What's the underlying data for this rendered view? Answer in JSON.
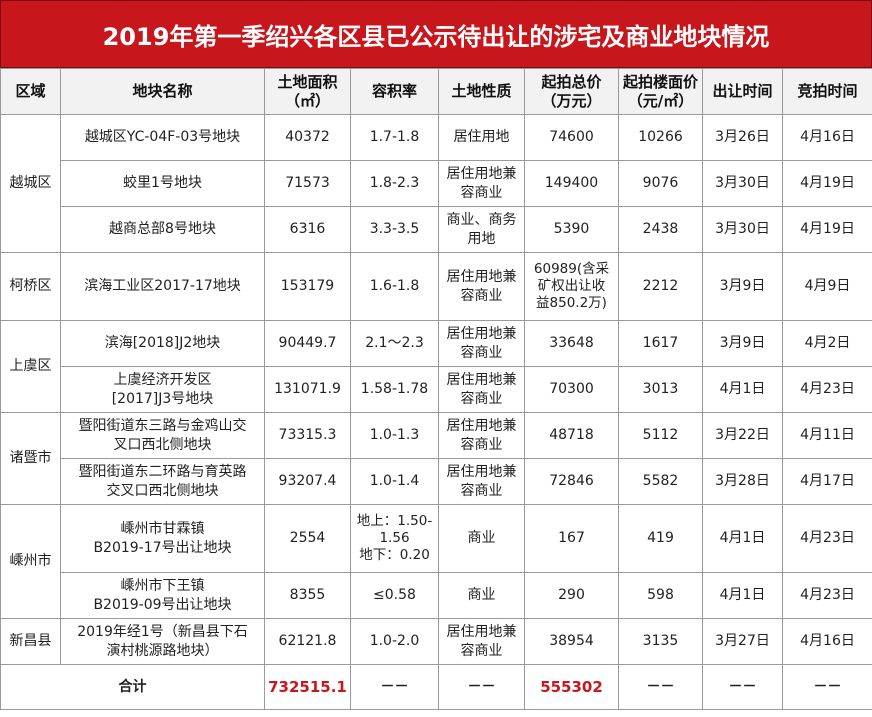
{
  "title": "2019年第一季绍兴各区县已公示待出让的涉宅及商业地块情况",
  "headers": {
    "district": "区域",
    "name": "地块名称",
    "area_1": "土地面积",
    "area_2": "（㎡）",
    "far": "容积率",
    "nature": "土地性质",
    "price_1": "起拍总价",
    "price_2": "（万元）",
    "unit_1": "起拍楼面价",
    "unit_2": "（元/㎡）",
    "sale": "出让时间",
    "auction": "竞拍时间"
  },
  "groups": [
    {
      "district": "越城区"
    },
    {
      "district": "柯桥区"
    },
    {
      "district": "上虞区"
    },
    {
      "district": "诸暨市"
    },
    {
      "district": "嵊州市"
    },
    {
      "district": "新昌县"
    }
  ],
  "rows": [
    {
      "name": [
        "越城区YC-04F-03号地块"
      ],
      "area": "40372",
      "far": [
        "1.7-1.8"
      ],
      "nature": [
        "居住用地"
      ],
      "price": [
        "74600"
      ],
      "unit": "10266",
      "sale": "3月26日",
      "auction": "4月16日"
    },
    {
      "name": [
        "蛟里1号地块"
      ],
      "area": "71573",
      "far": [
        "1.8-2.3"
      ],
      "nature": [
        "居住用地兼",
        "容商业"
      ],
      "price": [
        "149400"
      ],
      "unit": "9076",
      "sale": "3月30日",
      "auction": "4月19日"
    },
    {
      "name": [
        "越商总部8号地块"
      ],
      "area": "6316",
      "far": [
        "3.3-3.5"
      ],
      "nature": [
        "商业、商务",
        "用地"
      ],
      "price": [
        "5390"
      ],
      "unit": "2438",
      "sale": "3月30日",
      "auction": "4月19日"
    },
    {
      "name": [
        "滨海工业区2017-17地块"
      ],
      "area": "153179",
      "far": [
        "1.6-1.8"
      ],
      "nature": [
        "居住用地兼",
        "容商业"
      ],
      "price": [
        "60989(含采",
        "矿权出让收",
        "益850.2万)"
      ],
      "unit": "2212",
      "sale": "3月9日",
      "auction": "4月9日"
    },
    {
      "name": [
        "滨海[2018]J2地块"
      ],
      "area": "90449.7",
      "far": [
        "2.1～2.3"
      ],
      "nature": [
        "居住用地兼",
        "容商业"
      ],
      "price": [
        "33648"
      ],
      "unit": "1617",
      "sale": "3月9日",
      "auction": "4月2日"
    },
    {
      "name": [
        "上虞经济开发区",
        "[2017]J3号地块"
      ],
      "area": "131071.9",
      "far": [
        "1.58-1.78"
      ],
      "nature": [
        "居住用地兼",
        "容商业"
      ],
      "price": [
        "70300"
      ],
      "unit": "3013",
      "sale": "4月1日",
      "auction": "4月23日"
    },
    {
      "name": [
        "暨阳街道东三路与金鸡山交",
        "叉口西北侧地块"
      ],
      "area": "73315.3",
      "far": [
        "1.0-1.3"
      ],
      "nature": [
        "居住用地兼",
        "容商业"
      ],
      "price": [
        "48718"
      ],
      "unit": "5112",
      "sale": "3月22日",
      "auction": "4月11日"
    },
    {
      "name": [
        "暨阳街道东二环路与育英路",
        "交叉口西北侧地块"
      ],
      "area": "93207.4",
      "far": [
        "1.0-1.4"
      ],
      "nature": [
        "居住用地兼",
        "容商业"
      ],
      "price": [
        "72846"
      ],
      "unit": "5582",
      "sale": "3月28日",
      "auction": "4月17日"
    },
    {
      "name": [
        "嵊州市甘霖镇",
        "B2019-17号出让地块"
      ],
      "area": "2554",
      "far": [
        "地上：1.50-",
        "1.56",
        "地下：0.20"
      ],
      "nature": [
        "商业"
      ],
      "price": [
        "167"
      ],
      "unit": "419",
      "sale": "4月1日",
      "auction": "4月23日"
    },
    {
      "name": [
        "嵊州市下王镇",
        "B2019-09号出让地块"
      ],
      "area": "8355",
      "far": [
        "≤0.58"
      ],
      "nature": [
        "商业"
      ],
      "price": [
        "290"
      ],
      "unit": "598",
      "sale": "4月1日",
      "auction": "4月23日"
    },
    {
      "name": [
        "2019年经1号（新昌县下石",
        "演村桃源路地块）"
      ],
      "area": "62121.8",
      "far": [
        "1.0-2.0"
      ],
      "nature": [
        "居住用地兼",
        "容商业"
      ],
      "price": [
        "38954"
      ],
      "unit": "3135",
      "sale": "3月27日",
      "auction": "4月16日"
    }
  ],
  "total": {
    "label": "合计",
    "area": "732515.1",
    "far": "－－",
    "nature": "－－",
    "price": "555302",
    "unit": "－－",
    "sale": "－－",
    "auction": "－－"
  },
  "colors": {
    "title_bg": "#c8161d",
    "total_red": "#c8161d",
    "grid": "#9a9a9a"
  }
}
